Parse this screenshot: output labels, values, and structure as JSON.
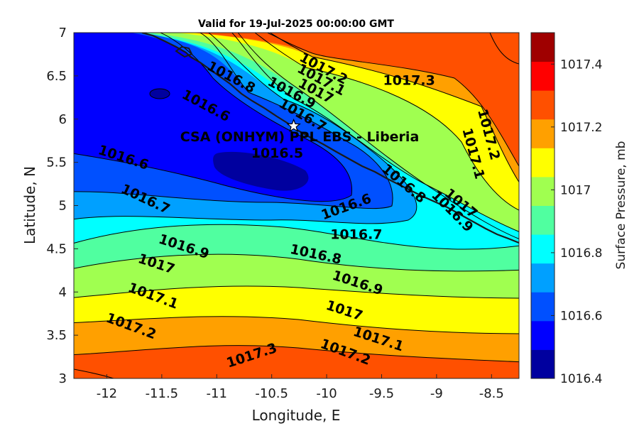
{
  "title": "Valid for 19-Jul-2025 00:00:00 GMT",
  "xlabel": "Longitude, E",
  "ylabel": "Latitude, N",
  "site_label": "CSA (ONHYM) PPL EBS  - Liberia",
  "colorbar": {
    "label": "Surface Pressure, mb",
    "range": [
      1016.4,
      1017.5
    ],
    "tick_values": [
      1016.4,
      1016.6,
      1016.8,
      1017,
      1017.2,
      1017.4
    ],
    "tick_labels": [
      "1016.4",
      "1016.6",
      "1016.8",
      "1017",
      "1017.2",
      "1017.4"
    ],
    "level_colors": [
      "#00009f",
      "#0000ff",
      "#0050ff",
      "#00a0ff",
      "#00ffff",
      "#50ffa0",
      "#a0ff50",
      "#ffff00",
      "#ffa000",
      "#ff5000",
      "#ff0000",
      "#9f0000"
    ]
  },
  "chart_data": {
    "type": "heatmap",
    "title": "Valid for 19-Jul-2025 00:00:00 GMT",
    "xlabel": "Longitude, E",
    "ylabel": "Latitude, N",
    "xlim": [
      -12.3,
      -8.25
    ],
    "ylim": [
      3,
      7
    ],
    "x_ticks": [
      -12,
      -11.5,
      -11,
      -10.5,
      -10,
      -9.5,
      -9,
      -8.5
    ],
    "x_tick_labels": [
      "-12",
      "-11.5",
      "-11",
      "-10.5",
      "-10",
      "-9.5",
      "-9",
      "-8.5"
    ],
    "y_ticks": [
      3,
      3.5,
      4,
      4.5,
      5,
      5.5,
      6,
      6.5,
      7
    ],
    "y_tick_labels": [
      "3",
      "3.5",
      "4",
      "4.5",
      "5",
      "5.5",
      "6",
      "6.5",
      "7"
    ],
    "contour_levels": [
      1016.5,
      1016.6,
      1016.7,
      1016.8,
      1016.9,
      1017.0,
      1017.1,
      1017.2,
      1017.3
    ],
    "contour_labels": [
      {
        "text": "1016.5",
        "lon": -10.45,
        "lat": 5.6,
        "angle": 0
      },
      {
        "text": "1016.6",
        "lon": -11.85,
        "lat": 5.55,
        "angle": 18
      },
      {
        "text": "1016.6",
        "lon": -11.1,
        "lat": 6.15,
        "angle": 28
      },
      {
        "text": "1016.6",
        "lon": -9.82,
        "lat": 4.98,
        "angle": -20
      },
      {
        "text": "1016.7",
        "lon": -11.65,
        "lat": 5.07,
        "angle": 25
      },
      {
        "text": "1016.7",
        "lon": -9.73,
        "lat": 4.66,
        "angle": 0
      },
      {
        "text": "1016.7",
        "lon": -10.22,
        "lat": 6.04,
        "angle": 30
      },
      {
        "text": "1016.8",
        "lon": -10.1,
        "lat": 4.43,
        "angle": 12
      },
      {
        "text": "1016.8",
        "lon": -10.87,
        "lat": 6.48,
        "angle": 28
      },
      {
        "text": "1016.8",
        "lon": -9.3,
        "lat": 5.25,
        "angle": 40
      },
      {
        "text": "1016.9",
        "lon": -11.3,
        "lat": 4.52,
        "angle": 18
      },
      {
        "text": "1016.9",
        "lon": -9.72,
        "lat": 4.1,
        "angle": 18
      },
      {
        "text": "1016.9",
        "lon": -10.32,
        "lat": 6.3,
        "angle": 28
      },
      {
        "text": "1016.9",
        "lon": -8.86,
        "lat": 4.93,
        "angle": 45
      },
      {
        "text": "1017",
        "lon": -11.55,
        "lat": 4.32,
        "angle": 18
      },
      {
        "text": "1017",
        "lon": -9.84,
        "lat": 3.78,
        "angle": 18
      },
      {
        "text": "1017",
        "lon": -10.1,
        "lat": 6.32,
        "angle": 28
      },
      {
        "text": "1017",
        "lon": -8.78,
        "lat": 5.02,
        "angle": 40
      },
      {
        "text": "1017.1",
        "lon": -11.58,
        "lat": 3.95,
        "angle": 20
      },
      {
        "text": "1017.1",
        "lon": -9.53,
        "lat": 3.45,
        "angle": 18
      },
      {
        "text": "1017.1",
        "lon": -10.05,
        "lat": 6.45,
        "angle": 28
      },
      {
        "text": "1017.1",
        "lon": -8.67,
        "lat": 5.6,
        "angle": 75
      },
      {
        "text": "1017.2",
        "lon": -11.78,
        "lat": 3.6,
        "angle": 20
      },
      {
        "text": "1017.2",
        "lon": -9.83,
        "lat": 3.3,
        "angle": 20
      },
      {
        "text": "1017.2",
        "lon": -10.03,
        "lat": 6.58,
        "angle": 28
      },
      {
        "text": "1017.2",
        "lon": -8.53,
        "lat": 5.82,
        "angle": 75
      },
      {
        "text": "1017.3",
        "lon": -10.68,
        "lat": 3.26,
        "angle": -18
      },
      {
        "text": "1017.3",
        "lon": -9.25,
        "lat": 6.44,
        "angle": 0
      }
    ],
    "site_marker": {
      "lon": -10.3,
      "lat": 5.92,
      "symbol": "star"
    }
  }
}
